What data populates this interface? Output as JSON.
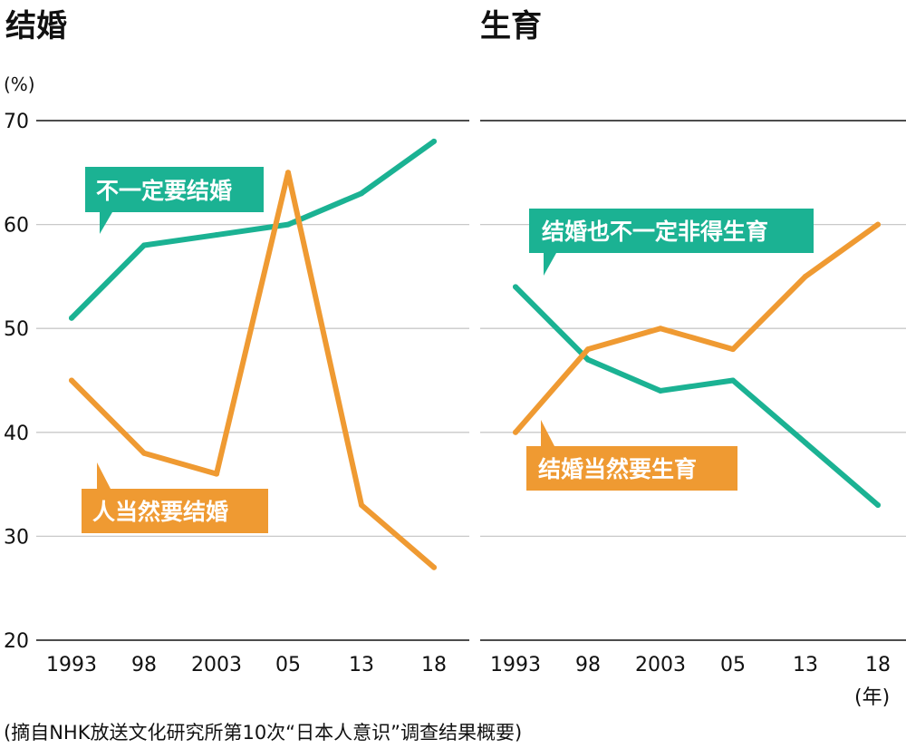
{
  "unit_label": "(%)",
  "year_label": "(年)",
  "source": "(摘自NHK放送文化研究所第10次“日本人意识”调查结果概要)",
  "colors": {
    "green": "#1bb293",
    "orange": "#ef9a32",
    "grid": "#c9c9c9",
    "text": "#111111"
  },
  "chart_data": [
    {
      "type": "line",
      "title": "结婚",
      "categories": [
        "1993",
        "98",
        "2003",
        "05",
        "13",
        "18"
      ],
      "ylim": [
        20,
        70
      ],
      "yticks": [
        20,
        30,
        40,
        50,
        60,
        70
      ],
      "series": [
        {
          "name": "不一定要结婚",
          "color": "green",
          "values": [
            51,
            58,
            59,
            60,
            63,
            68
          ]
        },
        {
          "name": "人当然要结婚",
          "color": "orange",
          "values": [
            45,
            38,
            36,
            65,
            33,
            27
          ]
        }
      ]
    },
    {
      "type": "line",
      "title": "生育",
      "categories": [
        "1993",
        "98",
        "2003",
        "05",
        "13",
        "18"
      ],
      "ylim": [
        20,
        70
      ],
      "yticks": [
        20,
        30,
        40,
        50,
        60,
        70
      ],
      "series": [
        {
          "name": "结婚也不一定非得生育",
          "color": "green",
          "values": [
            54,
            47,
            44,
            45,
            39,
            33
          ]
        },
        {
          "name": "结婚当然要生育",
          "color": "orange",
          "values": [
            40,
            48,
            50,
            48,
            55,
            60
          ]
        }
      ]
    }
  ]
}
